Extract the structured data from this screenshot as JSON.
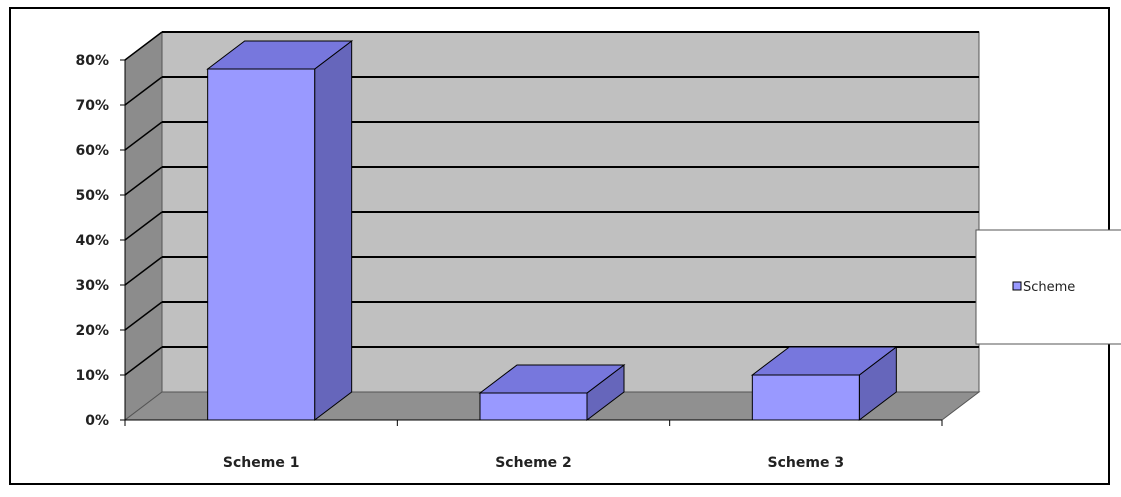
{
  "chart_data": {
    "type": "bar",
    "style": "3d",
    "categories": [
      "Scheme 1",
      "Scheme 2",
      "Scheme 3"
    ],
    "series": [
      {
        "name": "Scheme",
        "values": [
          78,
          6,
          10
        ]
      }
    ],
    "ylim": [
      0,
      80
    ],
    "y_ticks": [
      0,
      10,
      20,
      30,
      40,
      50,
      60,
      70,
      80
    ],
    "y_tick_format": "percent",
    "grid": true,
    "legend": "right",
    "colors": {
      "bar_front": "#9999FF",
      "bar_top": "#7777DD",
      "bar_side": "#6666BB",
      "wall": "#C0C0C0",
      "wall_side": "#8C8C8C",
      "floor": "#909090"
    }
  }
}
